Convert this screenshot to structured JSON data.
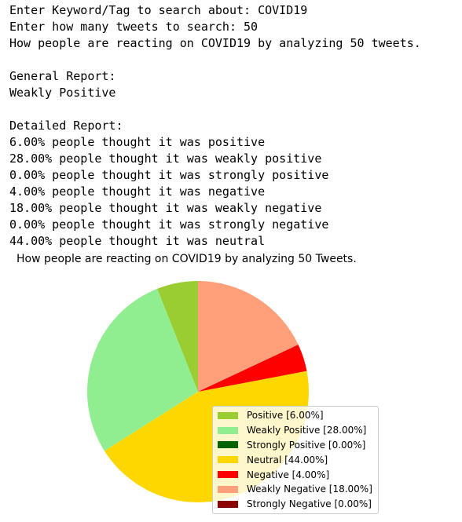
{
  "console": {
    "lines": [
      "Enter Keyword/Tag to search about: COVID19",
      "Enter how many tweets to search: 50",
      "How people are reacting on COVID19 by analyzing 50 tweets.",
      "",
      "General Report:",
      "Weakly Positive",
      "",
      "Detailed Report:",
      "6.00% people thought it was positive",
      "28.00% people thought it was weakly positive",
      "0.00% people thought it was strongly positive",
      "4.00% people thought it was negative",
      "18.00% people thought it was weakly negative",
      "0.00% people thought it was strongly negative",
      "44.00% people thought it was neutral"
    ]
  },
  "chart_data": {
    "type": "pie",
    "title": "How people are reacting on COVID19 by analyzing 50 Tweets.",
    "start_angle_deg": 90,
    "direction": "counterclockwise",
    "legend_position": "lower-right",
    "slices": [
      {
        "label": "Positive [6.00%]",
        "value": 6.0,
        "color": "#9acd32"
      },
      {
        "label": "Weakly Positive [28.00%]",
        "value": 28.0,
        "color": "#90ee90"
      },
      {
        "label": "Strongly Positive [0.00%]",
        "value": 0.0,
        "color": "#006400"
      },
      {
        "label": "Neutral [44.00%]",
        "value": 44.0,
        "color": "#ffd700"
      },
      {
        "label": "Negative [4.00%]",
        "value": 4.0,
        "color": "#ff0000"
      },
      {
        "label": "Weakly Negative [18.00%]",
        "value": 18.0,
        "color": "#ffa07a"
      },
      {
        "label": "Strongly Negative [0.00%]",
        "value": 0.0,
        "color": "#8b0000"
      }
    ]
  }
}
